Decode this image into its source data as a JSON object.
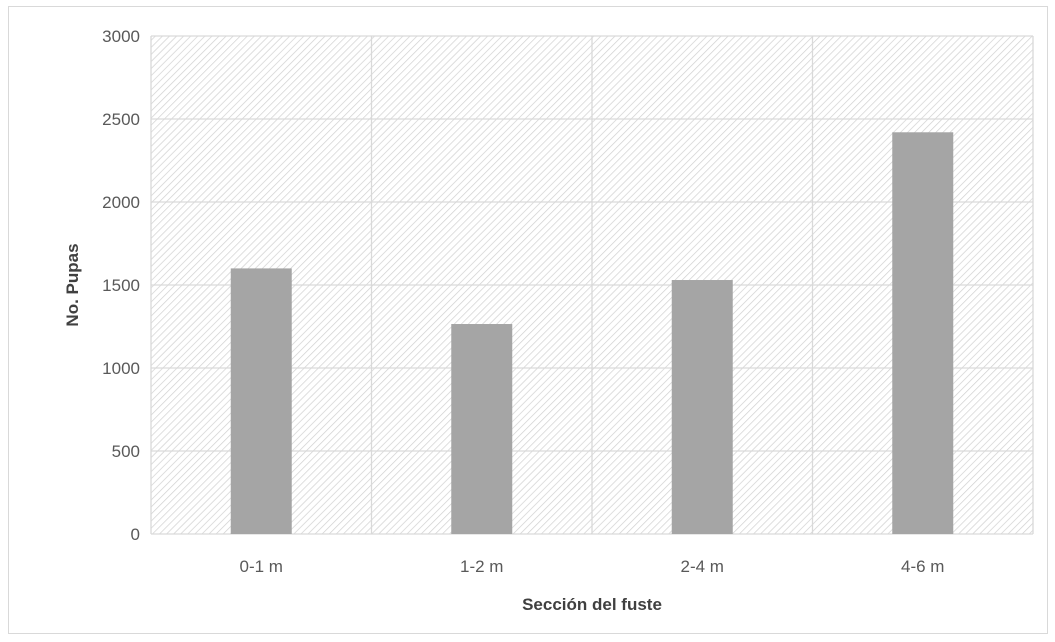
{
  "chart_data": {
    "type": "bar",
    "categories": [
      "0-1 m",
      "1-2 m",
      "2-4 m",
      "4-6 m"
    ],
    "values": [
      1600,
      1265,
      1530,
      2420
    ],
    "title": "",
    "xlabel": "Sección del fuste",
    "ylabel": "No. Pupas",
    "ylim": [
      0,
      3000
    ],
    "yticks": [
      0,
      500,
      1000,
      1500,
      2000,
      2500,
      3000
    ],
    "grid": true,
    "legend": "none",
    "colors": {
      "bar": "#a5a5a5",
      "grid": "#d9d9d9",
      "plot_hatch": "#d0d0d0"
    }
  }
}
